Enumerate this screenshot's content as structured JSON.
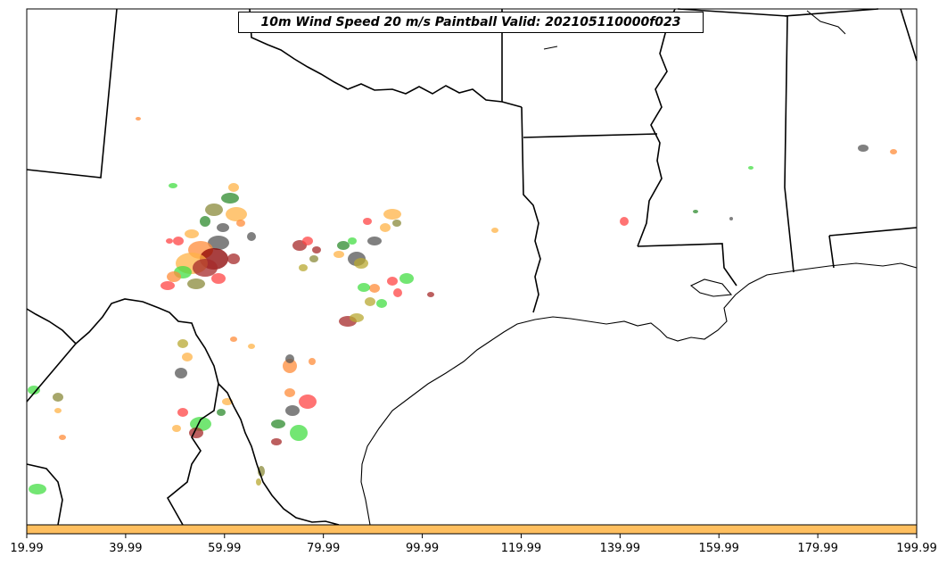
{
  "title": "10m Wind Speed 20 m/s Paintball Valid: 202105110000f023",
  "colorbar": {
    "color": "#ffbf5f",
    "ticks": [
      "19.99",
      "39.99",
      "59.99",
      "79.99",
      "99.99",
      "119.99",
      "139.99",
      "159.99",
      "179.99",
      "199.99"
    ]
  },
  "colors": {
    "member_palette": [
      "#ff4444",
      "#ff8c3a",
      "#ffb347",
      "#44dd44",
      "#2e8b2e",
      "#555555",
      "#a52a2a",
      "#8b0000",
      "#b8a832",
      "#8a8a3a"
    ]
  }
}
